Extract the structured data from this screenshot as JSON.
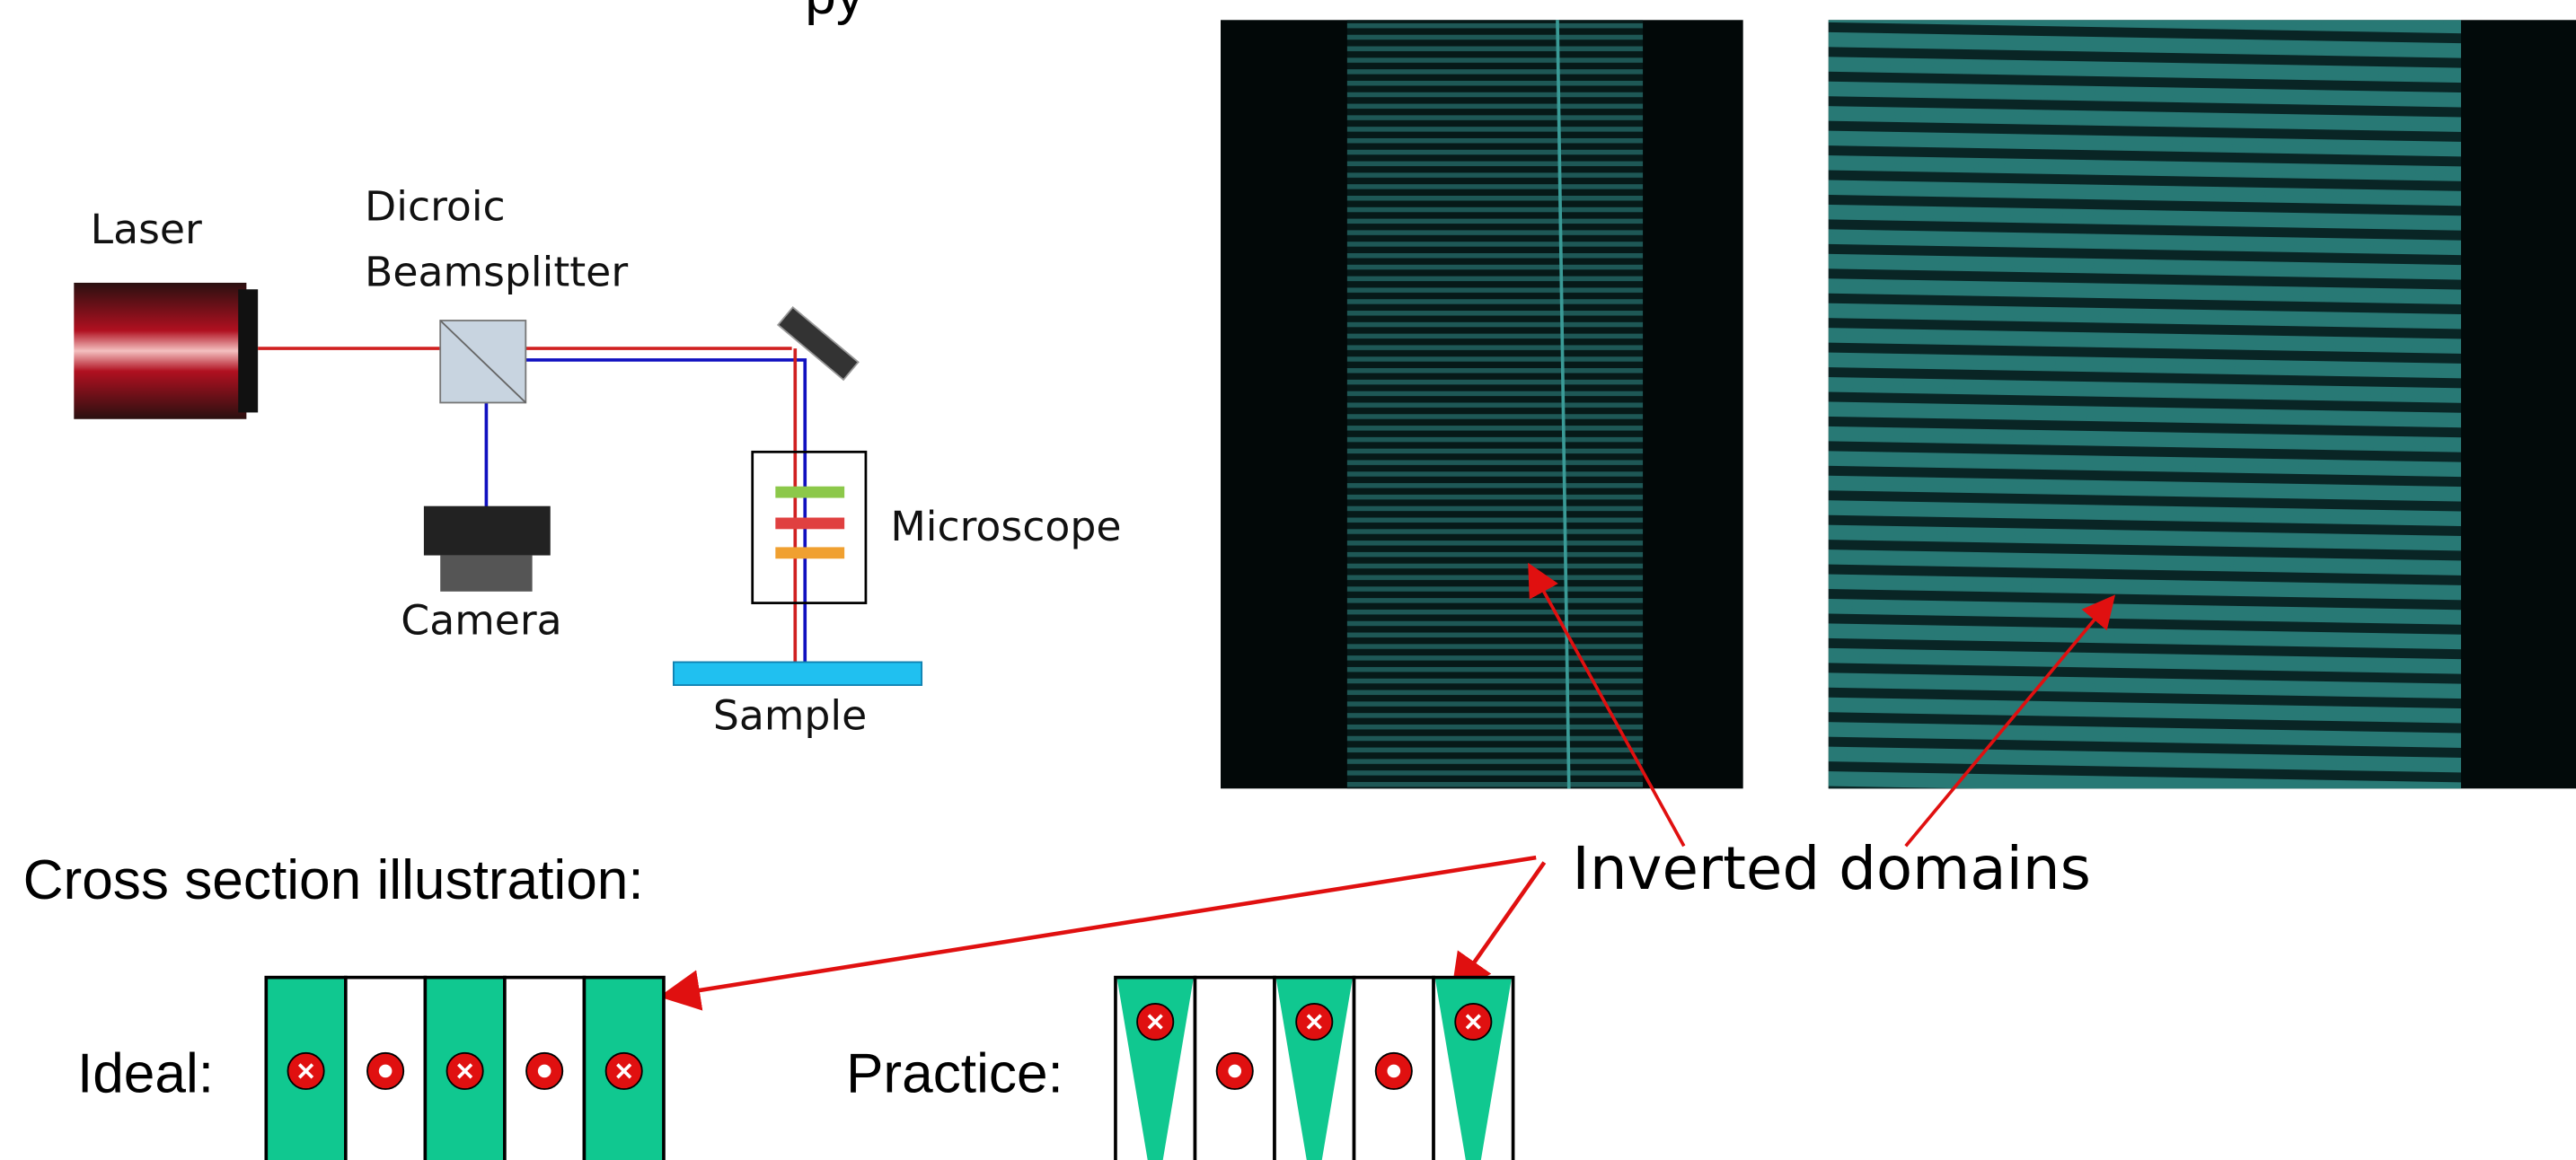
{
  "header_fragment": "py",
  "setup": {
    "laser": "Laser",
    "beamsplitter": [
      "Dicroic",
      "Beamsplitter"
    ],
    "camera": "Camera",
    "microscope": "Microscope",
    "sample": "Sample"
  },
  "annotation": "Inverted domains",
  "cross_section": {
    "title": "Cross section illustration:",
    "ideal": "Ideal:",
    "practice": "Practice:"
  }
}
